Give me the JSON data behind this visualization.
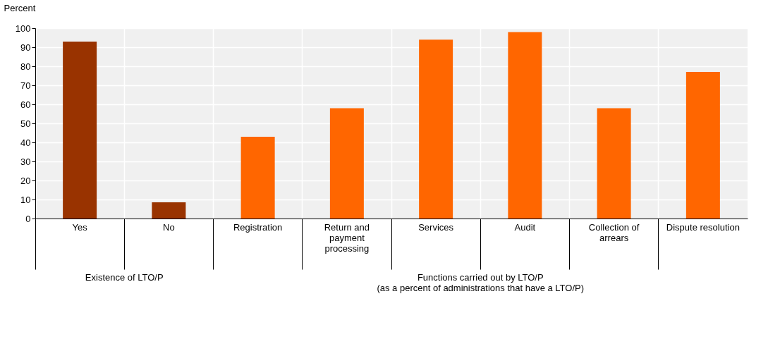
{
  "chart_data": {
    "type": "bar",
    "ylabel": "Percent",
    "categories": [
      "Yes",
      "No",
      "Registration",
      "Return and\npayment\nprocessing",
      "Services",
      "Audit",
      "Collection of\narrears",
      "Dispute resolution"
    ],
    "values": [
      93,
      8.5,
      43,
      58,
      94,
      98,
      58,
      77
    ],
    "colors": [
      "#993300",
      "#993300",
      "#ff6600",
      "#ff6600",
      "#ff6600",
      "#ff6600",
      "#ff6600",
      "#ff6600"
    ],
    "ylim": [
      0,
      100
    ],
    "yticks": [
      0,
      10,
      20,
      30,
      40,
      50,
      60,
      70,
      80,
      90,
      100
    ],
    "grid": true,
    "annotations": [
      "Existence of LTO/P",
      "Functions carried out by LTO/P\n(as a percent of administrations that have a LTO/P)"
    ]
  }
}
